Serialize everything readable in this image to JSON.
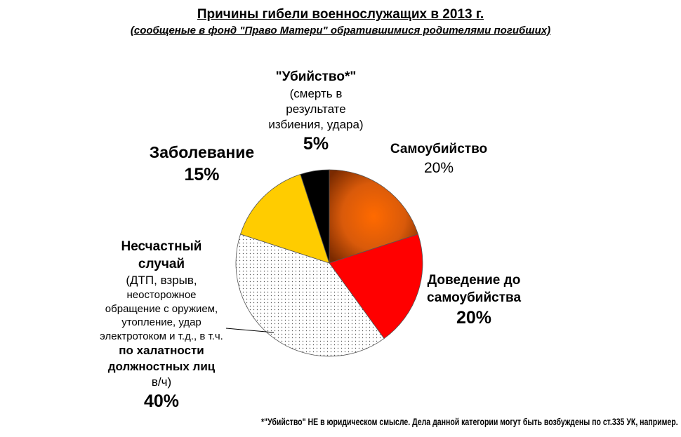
{
  "chart_data": {
    "type": "pie",
    "title": "Причины гибели военнослужащих в 2013 г.",
    "subtitle": "(сообщеные в фонд \"Право Матери\" обратившимися родителями погибших)",
    "slices": [
      {
        "key": "suicide",
        "value": 20,
        "color": "#e06010",
        "fill": "gradient"
      },
      {
        "key": "driven",
        "value": 20,
        "color": "#ff0000",
        "fill": "solid"
      },
      {
        "key": "accident",
        "value": 40,
        "color": "#ffffff",
        "fill": "dots"
      },
      {
        "key": "disease",
        "value": 15,
        "color": "#ffcc00",
        "fill": "solid"
      },
      {
        "key": "murder",
        "value": 5,
        "color": "#000000",
        "fill": "solid"
      }
    ],
    "labels": {
      "murder": {
        "name": "\"Убийство*\"",
        "lines": [
          "(смерть в",
          "результате",
          "избиения, удара)"
        ],
        "pct": "5%"
      },
      "suicide": {
        "name": "Самоубийство",
        "pct": "20%"
      },
      "disease": {
        "name": "Заболевание",
        "pct": "15%"
      },
      "driven": {
        "name1": "Доведение до",
        "name2": "самоубийства",
        "pct": "20%"
      },
      "accident": {
        "name1": "Несчастный",
        "name2": "случай",
        "line3": "(ДТП, взрыв,",
        "small": [
          "неосторожное",
          "обращение с оружием,",
          "утопление, удар",
          "электротоком и т.д., в т.ч."
        ],
        "bold": [
          "по халатности",
          "должностных лиц"
        ],
        "line_end": "в/ч)",
        "pct": "40%"
      }
    },
    "footnote": "*\"Убийство\" НЕ в юридическом смысле. Дела данной категории могут быть возбуждены по ст.335 УК, например."
  }
}
